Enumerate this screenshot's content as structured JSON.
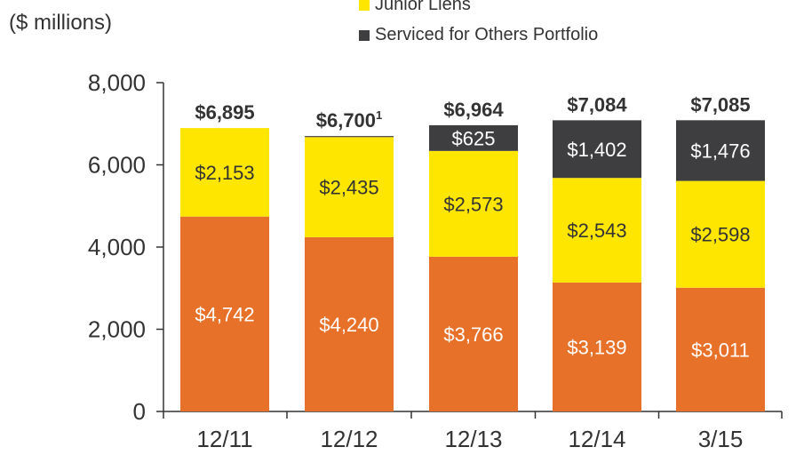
{
  "chart_data": {
    "type": "bar",
    "stacked": true,
    "unit_label": "($ millions)",
    "categories": [
      "12/11",
      "12/12",
      "12/13",
      "12/14",
      "3/15"
    ],
    "series": [
      {
        "name": "",
        "color": "#E8712A",
        "values": [
          4742,
          4240,
          3766,
          3139,
          3011
        ],
        "labels": [
          "$4,742",
          "$4,240",
          "$3,766",
          "$3,139",
          "$3,011"
        ]
      },
      {
        "name": "Junior Liens",
        "color": "#FFE600",
        "values": [
          2153,
          2435,
          2573,
          2543,
          2598
        ],
        "labels": [
          "$2,153",
          "$2,435",
          "$2,573",
          "$2,543",
          "$2,598"
        ]
      },
      {
        "name": "Serviced for Others Portfolio",
        "color": "#3E3E40",
        "values": [
          0,
          25,
          625,
          1402,
          1476
        ],
        "labels": [
          "",
          "",
          "$625",
          "$1,402",
          "$1,476"
        ]
      }
    ],
    "totals": [
      "$6,895",
      "$6,700",
      "$6,964",
      "$7,084",
      "$7,085"
    ],
    "totals_superscript": [
      "",
      "1",
      "",
      "",
      ""
    ],
    "yticks": [
      "0",
      "2,000",
      "4,000",
      "6,000",
      "8,000"
    ],
    "ylim": [
      0,
      8000
    ],
    "legend_position": "top"
  }
}
